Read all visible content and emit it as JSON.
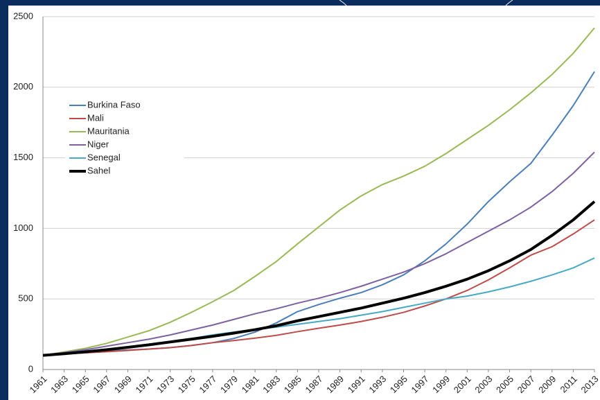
{
  "chart_data": {
    "type": "line",
    "x": [
      1961,
      1963,
      1965,
      1967,
      1969,
      1971,
      1973,
      1975,
      1977,
      1979,
      1981,
      1983,
      1985,
      1987,
      1989,
      1991,
      1993,
      1995,
      1997,
      1999,
      2001,
      2003,
      2005,
      2007,
      2009,
      2011,
      2013
    ],
    "xlim": [
      1961,
      2013
    ],
    "xticks": [
      1961,
      1963,
      1965,
      1967,
      1969,
      1971,
      1973,
      1975,
      1977,
      1979,
      1981,
      1983,
      1985,
      1987,
      1989,
      1991,
      1993,
      1995,
      1997,
      1999,
      2001,
      2003,
      2005,
      2007,
      2009,
      2011,
      2013
    ],
    "ylim": [
      0,
      2500
    ],
    "yticks": [
      0,
      500,
      1000,
      1500,
      2000,
      2500
    ],
    "grid": true,
    "legend": "upper left",
    "series": [
      {
        "name": "Burkina Faso",
        "color": "#4a7ebb",
        "line_width": 2,
        "values": [
          100,
          112,
          120,
          130,
          138,
          145,
          155,
          170,
          190,
          220,
          265,
          330,
          410,
          460,
          505,
          545,
          600,
          670,
          770,
          890,
          1030,
          1190,
          1330,
          1460,
          1660,
          1870,
          2110
        ]
      },
      {
        "name": "Mali",
        "color": "#be4b48",
        "line_width": 2,
        "values": [
          100,
          110,
          118,
          126,
          135,
          145,
          155,
          170,
          190,
          205,
          222,
          242,
          268,
          292,
          315,
          340,
          370,
          405,
          450,
          500,
          560,
          635,
          720,
          810,
          870,
          960,
          1060
        ]
      },
      {
        "name": "Mauritania",
        "color": "#98b954",
        "line_width": 2,
        "values": [
          100,
          125,
          150,
          185,
          230,
          275,
          335,
          405,
          480,
          560,
          660,
          765,
          890,
          1010,
          1130,
          1230,
          1310,
          1370,
          1440,
          1530,
          1630,
          1730,
          1840,
          1960,
          2090,
          2240,
          2420
        ]
      },
      {
        "name": "Niger",
        "color": "#7d60a0",
        "line_width": 2,
        "values": [
          100,
          120,
          140,
          165,
          190,
          215,
          245,
          280,
          315,
          355,
          395,
          430,
          470,
          505,
          545,
          590,
          640,
          690,
          750,
          820,
          900,
          980,
          1060,
          1150,
          1260,
          1390,
          1540
        ]
      },
      {
        "name": "Senegal",
        "color": "#46aac5",
        "line_width": 2,
        "values": [
          100,
          115,
          130,
          145,
          160,
          180,
          200,
          220,
          245,
          265,
          285,
          300,
          320,
          340,
          360,
          385,
          410,
          440,
          470,
          500,
          520,
          550,
          585,
          625,
          670,
          720,
          790
        ]
      },
      {
        "name": "Sahel",
        "color": "#000000",
        "line_width": 4,
        "values": [
          100,
          112,
          125,
          140,
          157,
          175,
          195,
          215,
          235,
          258,
          282,
          310,
          345,
          375,
          405,
          435,
          470,
          505,
          545,
          590,
          640,
          700,
          770,
          850,
          950,
          1060,
          1190
        ]
      }
    ]
  }
}
